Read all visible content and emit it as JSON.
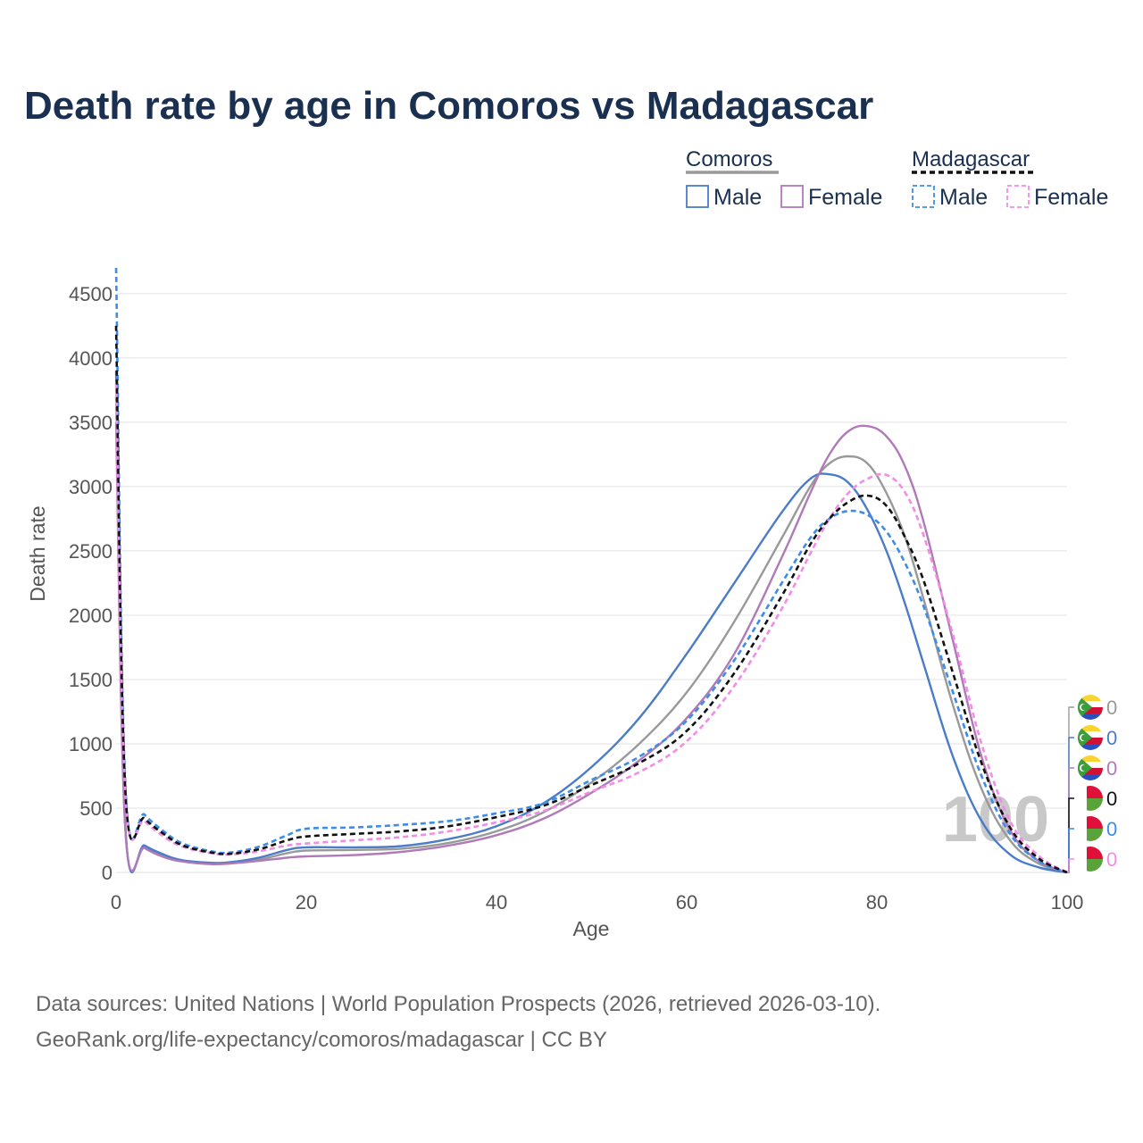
{
  "title": "Death rate by age in Comoros vs Madagascar",
  "legend": {
    "groups": [
      {
        "name": "Comoros",
        "style": "solid",
        "color": "#999999",
        "items": [
          {
            "label": "Male",
            "color": "#4a7cc9"
          },
          {
            "label": "Female",
            "color": "#b07ab8"
          }
        ]
      },
      {
        "name": "Madagascar",
        "style": "dashed",
        "color": "#111111",
        "items": [
          {
            "label": "Male",
            "color": "#3c8ce8"
          },
          {
            "label": "Female",
            "color": "#f28ce6"
          }
        ]
      }
    ]
  },
  "source": {
    "line1": "Data sources: United Nations | World Population Prospects (2026, retrieved 2026-03-10).",
    "line2": "GeoRank.org/life-expectancy/comoros/madagascar | CC BY"
  },
  "watermark": "100",
  "chart_data": {
    "type": "line",
    "title": "Death rate by age in Comoros vs Madagascar",
    "xlabel": "Age",
    "ylabel": "Death rate",
    "xlim": [
      0,
      100
    ],
    "ylim": [
      -90,
      4700
    ],
    "xticks": [
      0,
      20,
      40,
      60,
      80,
      100
    ],
    "yticks": [
      0,
      500,
      1000,
      1500,
      2000,
      2500,
      3000,
      3500,
      4000,
      4500
    ],
    "grid": true,
    "legend_position": "top-right",
    "series": [
      {
        "name": "Comoros Total",
        "country": "Comoros",
        "sex": "Total",
        "color": "#999999",
        "dash": "solid",
        "end_value": "0",
        "x": [
          0,
          1,
          3,
          5,
          7,
          10,
          12,
          15,
          18,
          20,
          25,
          30,
          35,
          40,
          45,
          50,
          55,
          60,
          65,
          70,
          73,
          75,
          77,
          79,
          81,
          83,
          85,
          88,
          91,
          94,
          97,
          100
        ],
        "y": [
          3700,
          310,
          200,
          130,
          90,
          70,
          75,
          100,
          150,
          170,
          175,
          185,
          230,
          320,
          470,
          700,
          1000,
          1400,
          1950,
          2600,
          3000,
          3180,
          3235,
          3180,
          2950,
          2600,
          2100,
          1300,
          650,
          250,
          70,
          0
        ]
      },
      {
        "name": "Comoros Male",
        "country": "Comoros",
        "sex": "Male",
        "color": "#4a7cc9",
        "dash": "solid",
        "end_value": "0",
        "x": [
          0,
          1,
          3,
          5,
          7,
          10,
          12,
          15,
          18,
          20,
          25,
          30,
          35,
          40,
          45,
          50,
          55,
          60,
          65,
          70,
          73,
          75,
          77,
          79,
          81,
          83,
          85,
          88,
          91,
          94,
          97,
          100
        ],
        "y": [
          3900,
          320,
          210,
          140,
          95,
          75,
          80,
          115,
          175,
          195,
          195,
          205,
          260,
          360,
          540,
          820,
          1200,
          1700,
          2250,
          2800,
          3060,
          3095,
          3030,
          2820,
          2500,
          2080,
          1600,
          900,
          400,
          140,
          40,
          0
        ]
      },
      {
        "name": "Comoros Female",
        "country": "Comoros",
        "sex": "Female",
        "color": "#b07ab8",
        "dash": "solid",
        "end_value": "0",
        "x": [
          0,
          1,
          3,
          5,
          7,
          10,
          12,
          15,
          18,
          20,
          25,
          30,
          35,
          40,
          45,
          50,
          55,
          60,
          65,
          70,
          73,
          75,
          77,
          79,
          81,
          83,
          85,
          88,
          91,
          94,
          97,
          100
        ],
        "y": [
          3500,
          300,
          190,
          120,
          85,
          65,
          70,
          90,
          115,
          125,
          135,
          160,
          210,
          290,
          420,
          620,
          870,
          1200,
          1700,
          2450,
          2950,
          3250,
          3430,
          3470,
          3390,
          3150,
          2700,
          1800,
          900,
          330,
          90,
          0
        ]
      },
      {
        "name": "Madagascar Total",
        "country": "Madagascar",
        "sex": "Total",
        "color": "#111111",
        "dash": "dashed",
        "end_value": "0",
        "x": [
          0,
          1,
          3,
          5,
          7,
          10,
          12,
          15,
          18,
          20,
          25,
          30,
          35,
          40,
          45,
          50,
          55,
          60,
          65,
          70,
          73,
          75,
          77,
          79,
          81,
          83,
          85,
          88,
          91,
          94,
          97,
          100
        ],
        "y": [
          4250,
          600,
          420,
          300,
          210,
          155,
          145,
          180,
          250,
          280,
          300,
          320,
          360,
          430,
          520,
          680,
          850,
          1100,
          1550,
          2150,
          2550,
          2750,
          2880,
          2930,
          2850,
          2600,
          2250,
          1550,
          850,
          350,
          110,
          0
        ]
      },
      {
        "name": "Madagascar Male",
        "country": "Madagascar",
        "sex": "Male",
        "color": "#3c8ce8",
        "dash": "dashed",
        "end_value": "0",
        "x": [
          0,
          1,
          3,
          5,
          7,
          10,
          12,
          15,
          18,
          20,
          25,
          30,
          35,
          40,
          45,
          50,
          55,
          60,
          65,
          70,
          73,
          75,
          77,
          79,
          81,
          83,
          85,
          88,
          91,
          94,
          97,
          100
        ],
        "y": [
          4700,
          640,
          450,
          320,
          225,
          165,
          155,
          200,
          290,
          340,
          350,
          370,
          400,
          460,
          540,
          720,
          900,
          1180,
          1650,
          2250,
          2600,
          2750,
          2810,
          2780,
          2650,
          2400,
          2050,
          1400,
          750,
          300,
          90,
          0
        ]
      },
      {
        "name": "Madagascar Female",
        "country": "Madagascar",
        "sex": "Female",
        "color": "#f28ce6",
        "dash": "dashed",
        "end_value": "0",
        "x": [
          0,
          1,
          3,
          5,
          7,
          10,
          12,
          15,
          18,
          20,
          25,
          30,
          35,
          40,
          45,
          50,
          55,
          60,
          65,
          70,
          73,
          75,
          77,
          79,
          81,
          83,
          85,
          88,
          91,
          94,
          97,
          100
        ],
        "y": [
          3800,
          560,
          400,
          280,
          200,
          150,
          140,
          165,
          210,
          225,
          250,
          275,
          320,
          390,
          480,
          630,
          780,
          1020,
          1450,
          2050,
          2480,
          2750,
          2950,
          3060,
          3090,
          2950,
          2600,
          1850,
          1000,
          400,
          130,
          0
        ]
      }
    ]
  }
}
